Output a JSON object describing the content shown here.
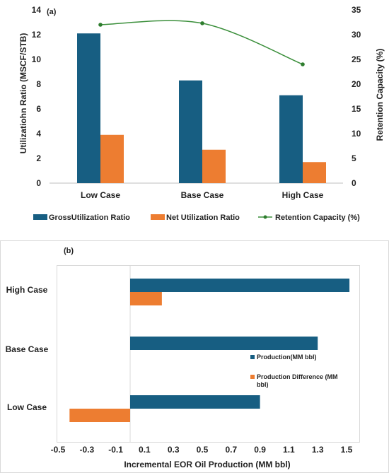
{
  "chart_data": [
    {
      "panel_label": "(a)",
      "type": "bar",
      "categories": [
        "Low Case",
        "Base Case",
        "High Case"
      ],
      "series": [
        {
          "name": "GrossUtilization Ratio",
          "values": [
            12.1,
            8.3,
            7.1
          ],
          "color": "#175e82"
        },
        {
          "name": "Net Utilization Ratio",
          "values": [
            3.9,
            2.7,
            1.7
          ],
          "color": "#ed7d31"
        }
      ],
      "line_series": {
        "name": "Retention Capacity (%)",
        "values": [
          32.0,
          32.3,
          24.0
        ],
        "color": "#3b8f3b"
      },
      "ylabel": "Utilizatiohn Ratio (MSCF/STB)",
      "y2label": "Retention Capacity (%)",
      "ylim": [
        0,
        14
      ],
      "y2lim": [
        0,
        35
      ],
      "yticks": [
        "0",
        "2",
        "4",
        "6",
        "8",
        "10",
        "12",
        "14"
      ],
      "y2ticks": [
        "0",
        "5",
        "10",
        "15",
        "20",
        "25",
        "30",
        "35"
      ],
      "legend_position": "bottom",
      "grid": false
    },
    {
      "panel_label": "(b)",
      "type": "bar",
      "orientation": "horizontal",
      "categories": [
        "High Case",
        "Base Case",
        "Low Case"
      ],
      "series": [
        {
          "name": "Production(MM bbl)",
          "values": [
            1.52,
            1.3,
            0.9
          ],
          "color": "#175e82"
        },
        {
          "name": "Production Difference (MM bbl)",
          "values": [
            0.22,
            0.0,
            -0.42
          ],
          "color": "#ed7d31"
        }
      ],
      "xlabel": "Incremental EOR Oil Production (MM bbl)",
      "xlim": [
        -0.5,
        1.5
      ],
      "xticks": [
        "-0.5",
        "-0.3",
        "-0.1",
        "0.1",
        "0.3",
        "0.5",
        "0.7",
        "0.9",
        "1.1",
        "1.3",
        "1.5"
      ],
      "legend_position": "right",
      "grid": false
    }
  ]
}
